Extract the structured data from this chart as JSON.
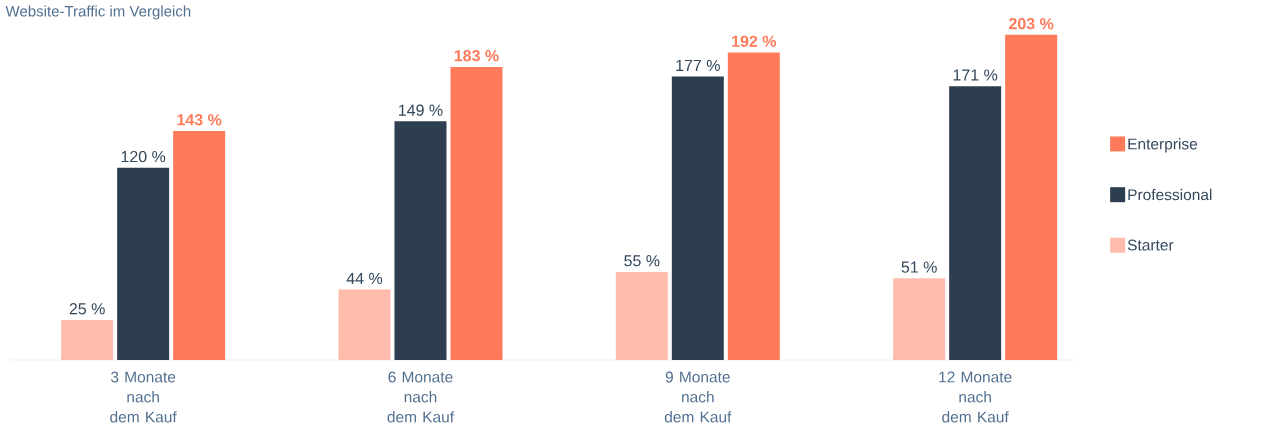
{
  "chart_data": {
    "type": "bar",
    "title": "Website-Traffic im Vergleich",
    "categories": [
      "3 Monate nach dem Kauf",
      "6 Monate nach dem Kauf",
      "9 Monate nach dem Kauf",
      "12 Monate nach dem Kauf"
    ],
    "series": [
      {
        "name": "Starter",
        "color": "#ffbcac",
        "values": [
          25,
          44,
          55,
          51
        ],
        "value_labels": [
          "25 %",
          "44 %",
          "55 %",
          "51 %"
        ]
      },
      {
        "name": "Professional",
        "color": "#2d3e50",
        "values": [
          120,
          149,
          177,
          171
        ],
        "value_labels": [
          "120 %",
          "149 %",
          "177 %",
          "171 %"
        ]
      },
      {
        "name": "Enterprise",
        "color": "#ff7a59",
        "values": [
          143,
          183,
          192,
          203
        ],
        "value_labels": [
          "**143 %**",
          "**183 %**",
          "**192 %**",
          "**203 %**"
        ]
      }
    ],
    "legend": "right"
  }
}
